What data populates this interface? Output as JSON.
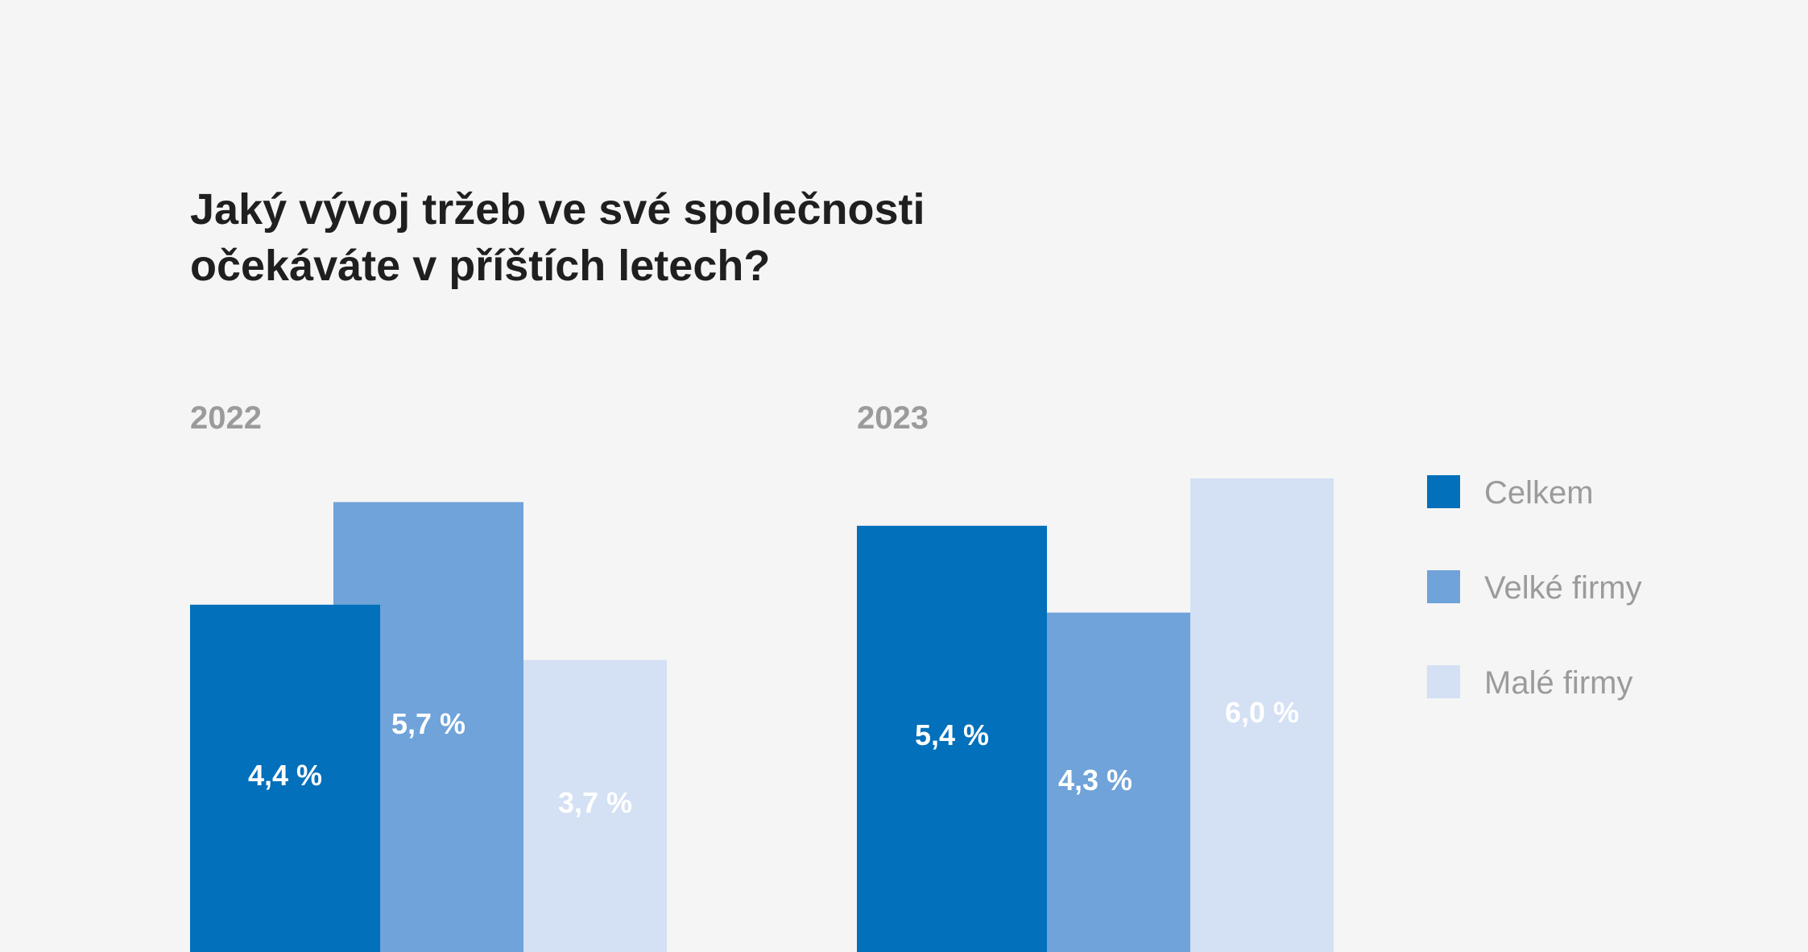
{
  "chart_data": {
    "type": "bar",
    "title": "Jaký vývoj tržeb ve své společnosti očekáváte v příštích letech?",
    "title_lines": [
      "Jaký vývoj tržeb ve své společnosti",
      "očekáváte v příštích letech?"
    ],
    "categories": [
      "2022",
      "2023"
    ],
    "value_unit": "%",
    "series": [
      {
        "name": "Celkem",
        "color": "#0270bb",
        "values": [
          4.4,
          5.4
        ],
        "labels": [
          "4,4 %",
          "5,4 %"
        ]
      },
      {
        "name": "Velké firmy",
        "color": "#6fa3d9",
        "values": [
          5.7,
          4.3
        ],
        "labels": [
          "5,7 %",
          "4,3 %"
        ]
      },
      {
        "name": "Malé firmy",
        "color": "#d4e0f3",
        "values": [
          3.7,
          6.0
        ],
        "labels": [
          "3,7 %",
          "6,0 %"
        ]
      }
    ],
    "grid": false,
    "legend_placement": "right"
  }
}
